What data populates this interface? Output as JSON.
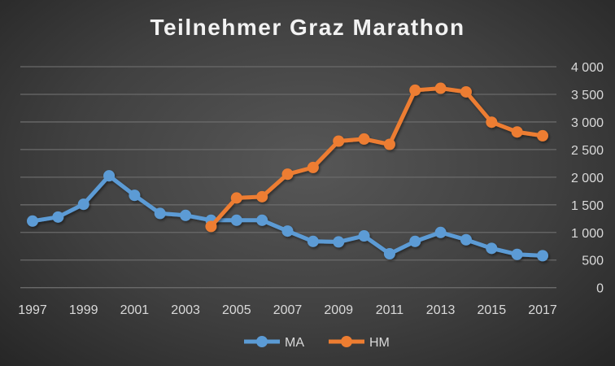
{
  "chart_data": {
    "type": "line",
    "title": "Teilnehmer Graz Marathon",
    "x": [
      1997,
      1998,
      1999,
      2000,
      2001,
      2002,
      2003,
      2004,
      2005,
      2006,
      2007,
      2008,
      2009,
      2010,
      2011,
      2012,
      2013,
      2014,
      2015,
      2016,
      2017
    ],
    "x_tick_labels": [
      "1997",
      "1999",
      "2001",
      "2003",
      "2005",
      "2007",
      "2009",
      "2011",
      "2013",
      "2015",
      "2017"
    ],
    "y_tick_labels": [
      "0",
      "500",
      "1 000",
      "1 500",
      "2 000",
      "2 500",
      "3 000",
      "3 500",
      "4 000"
    ],
    "ylim": [
      0,
      4000
    ],
    "y_axis_side": "right",
    "grid": true,
    "legend": "bottom",
    "series": [
      {
        "name": "MA",
        "color": "#5b9bd5",
        "values": [
          1206,
          1279,
          1510,
          2025,
          1672,
          1344,
          1309,
          1221,
          1221,
          1221,
          1025,
          838,
          829,
          937,
          613,
          838,
          1000,
          868,
          712,
          603,
          579
        ]
      },
      {
        "name": "HM",
        "color": "#ed7d31",
        "values": [
          null,
          null,
          null,
          null,
          null,
          null,
          null,
          1109,
          1624,
          1647,
          2054,
          2176,
          2653,
          2691,
          2594,
          3574,
          3609,
          3544,
          2996,
          2819,
          2750
        ]
      }
    ]
  }
}
